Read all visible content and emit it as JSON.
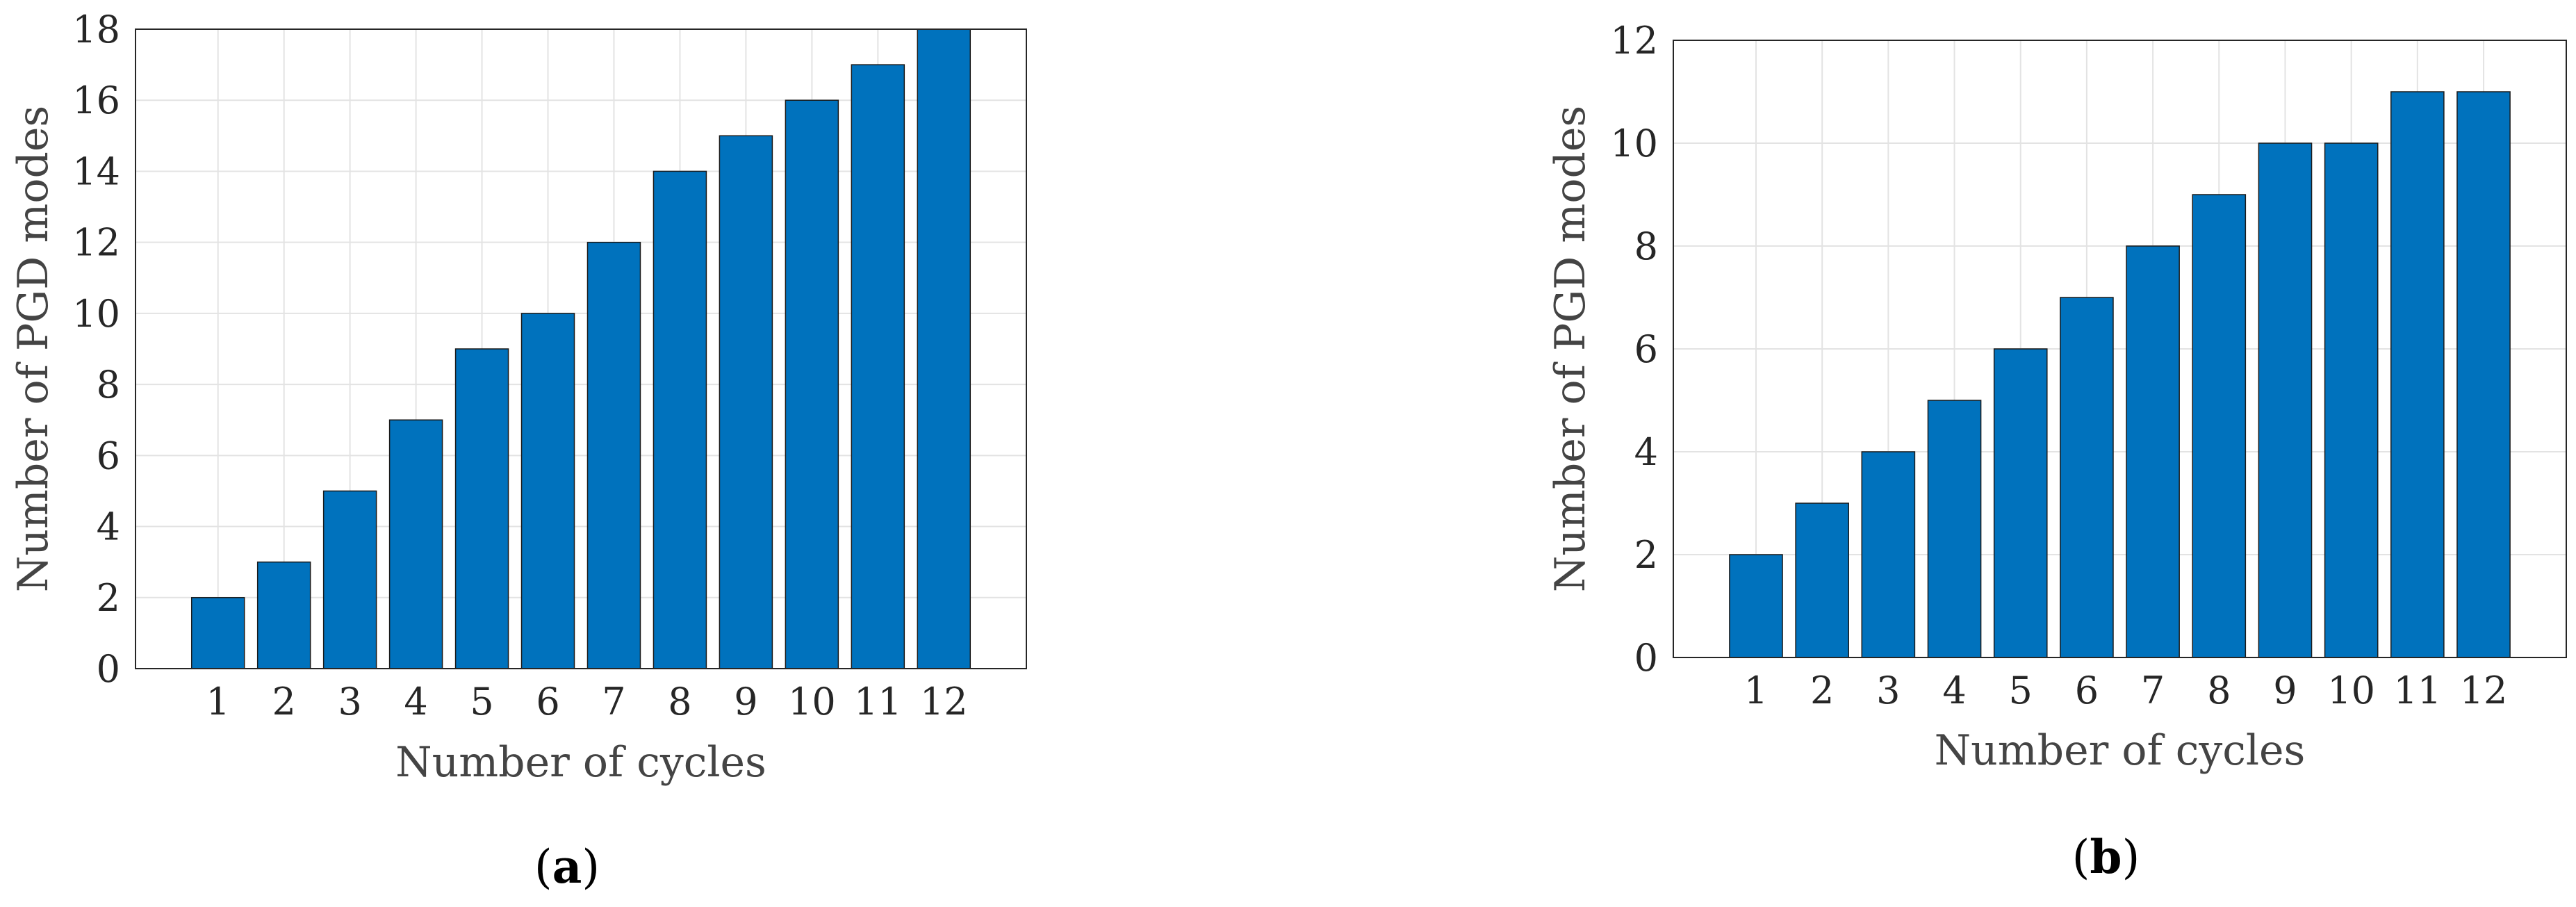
{
  "chart_data": [
    {
      "type": "bar",
      "panel": "a",
      "categories": [
        "1",
        "2",
        "3",
        "4",
        "5",
        "6",
        "7",
        "8",
        "9",
        "10",
        "11",
        "12"
      ],
      "values": [
        2,
        3,
        5,
        7,
        9,
        10,
        12,
        14,
        15,
        16,
        17,
        18
      ],
      "xlabel": "Number of cycles",
      "ylabel": "Number of PGD modes",
      "ylim": [
        0,
        18
      ],
      "yticks": [
        "0",
        "2",
        "4",
        "6",
        "8",
        "10",
        "12",
        "14",
        "16",
        "18"
      ],
      "grid": true,
      "bar_color": "#0072BD",
      "caption": {
        "open": "(",
        "letter": "a",
        "close": ")"
      }
    },
    {
      "type": "bar",
      "panel": "b",
      "categories": [
        "1",
        "2",
        "3",
        "4",
        "5",
        "6",
        "7",
        "8",
        "9",
        "10",
        "11",
        "12"
      ],
      "values": [
        2,
        3,
        4,
        5,
        6,
        7,
        8,
        9,
        10,
        10,
        11,
        11
      ],
      "xlabel": "Number of cycles",
      "ylabel": "Number of PGD modes",
      "ylim": [
        0,
        12
      ],
      "yticks": [
        "0",
        "2",
        "4",
        "6",
        "8",
        "10",
        "12"
      ],
      "grid": true,
      "bar_color": "#0072BD",
      "caption": {
        "open": "(",
        "letter": "b",
        "close": ")"
      }
    }
  ]
}
